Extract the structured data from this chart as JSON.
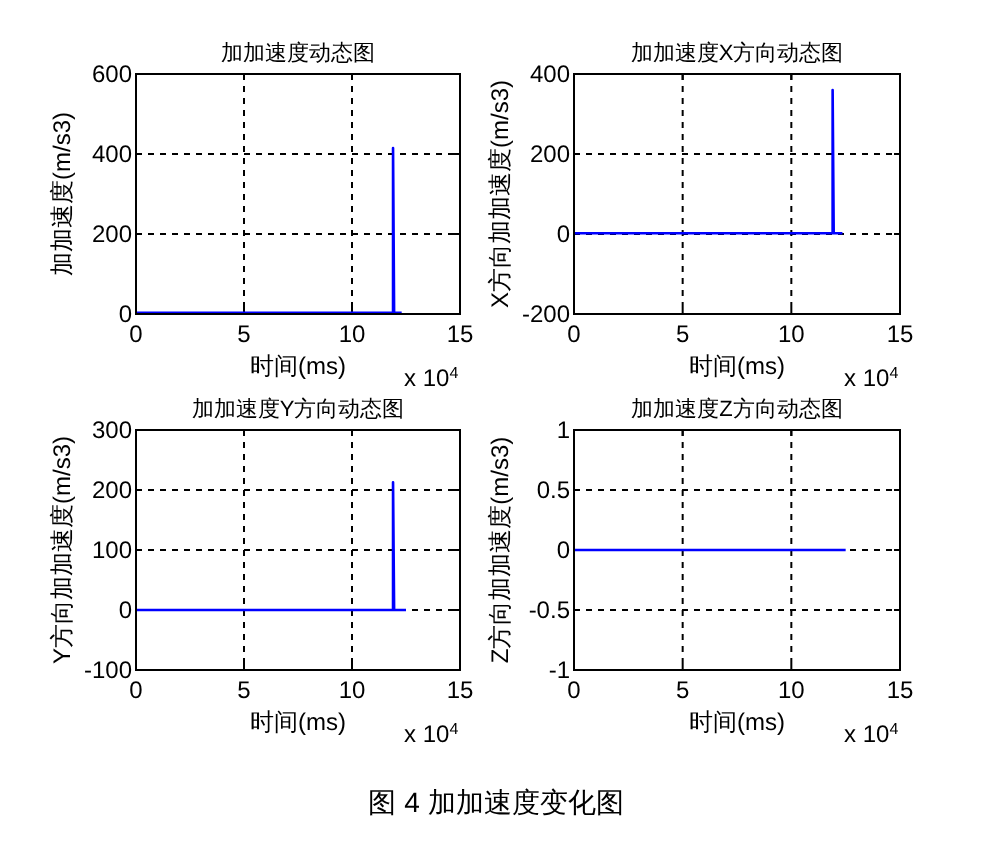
{
  "chart_data": [
    {
      "type": "line",
      "title": "加加速度动态图",
      "xlabel": "时间(ms)",
      "ylabel": "加加速度(m/s3)",
      "x": [
        0,
        11.9,
        11.9,
        11.95,
        12.3
      ],
      "series": [
        {
          "color": "#0000ff",
          "values": [
            3,
            3,
            415,
            3,
            3
          ]
        }
      ],
      "xlim": [
        0,
        15
      ],
      "ylim": [
        0,
        600
      ],
      "xticks": [
        0,
        5,
        10,
        15
      ],
      "yticks": [
        0,
        200,
        400,
        600
      ],
      "grid": true,
      "annotations": [
        "x 10$^{4}$"
      ]
    },
    {
      "type": "line",
      "title": "加加速度X方向动态图",
      "xlabel": "时间(ms)",
      "ylabel": "X方向加加速度(m/s3)",
      "x": [
        0,
        11.9,
        11.9,
        11.95,
        12.35
      ],
      "series": [
        {
          "color": "#0000ff",
          "values": [
            2,
            2,
            360,
            2,
            2
          ]
        }
      ],
      "xlim": [
        0,
        15
      ],
      "ylim": [
        -200,
        400
      ],
      "xticks": [
        0,
        5,
        10,
        15
      ],
      "yticks": [
        -200,
        0,
        200,
        400
      ],
      "grid": true,
      "annotations": [
        "x 10$^{4}$"
      ]
    },
    {
      "type": "line",
      "title": "加加速度Y方向动态图",
      "xlabel": "时间(ms)",
      "ylabel": "Y方向加加速度(m/s3)",
      "x": [
        0,
        11.9,
        11.9,
        11.95,
        12.5
      ],
      "series": [
        {
          "color": "#0000ff",
          "values": [
            0,
            0,
            213,
            0,
            0
          ]
        }
      ],
      "xlim": [
        0,
        15
      ],
      "ylim": [
        -100,
        300
      ],
      "xticks": [
        0,
        5,
        10,
        15
      ],
      "yticks": [
        -100,
        0,
        100,
        200,
        300
      ],
      "grid": true,
      "annotations": [
        "x 10$^{4}$"
      ]
    },
    {
      "type": "line",
      "title": "加加速度Z方向动态图",
      "xlabel": "时间(ms)",
      "ylabel": "Z方向加加速度(m/s3)",
      "x": [
        0,
        12.5
      ],
      "series": [
        {
          "color": "#0000ff",
          "values": [
            0,
            0
          ]
        }
      ],
      "xlim": [
        0,
        15
      ],
      "ylim": [
        -1,
        1
      ],
      "xticks": [
        0,
        5,
        10,
        15
      ],
      "yticks": [
        -1,
        -0.5,
        0,
        0.5,
        1
      ],
      "grid": true,
      "annotations": [
        "x 10$^{4}$"
      ]
    },
    {
      "type": "other",
      "annotations": [
        "图 4 加加速度变化图"
      ]
    }
  ]
}
